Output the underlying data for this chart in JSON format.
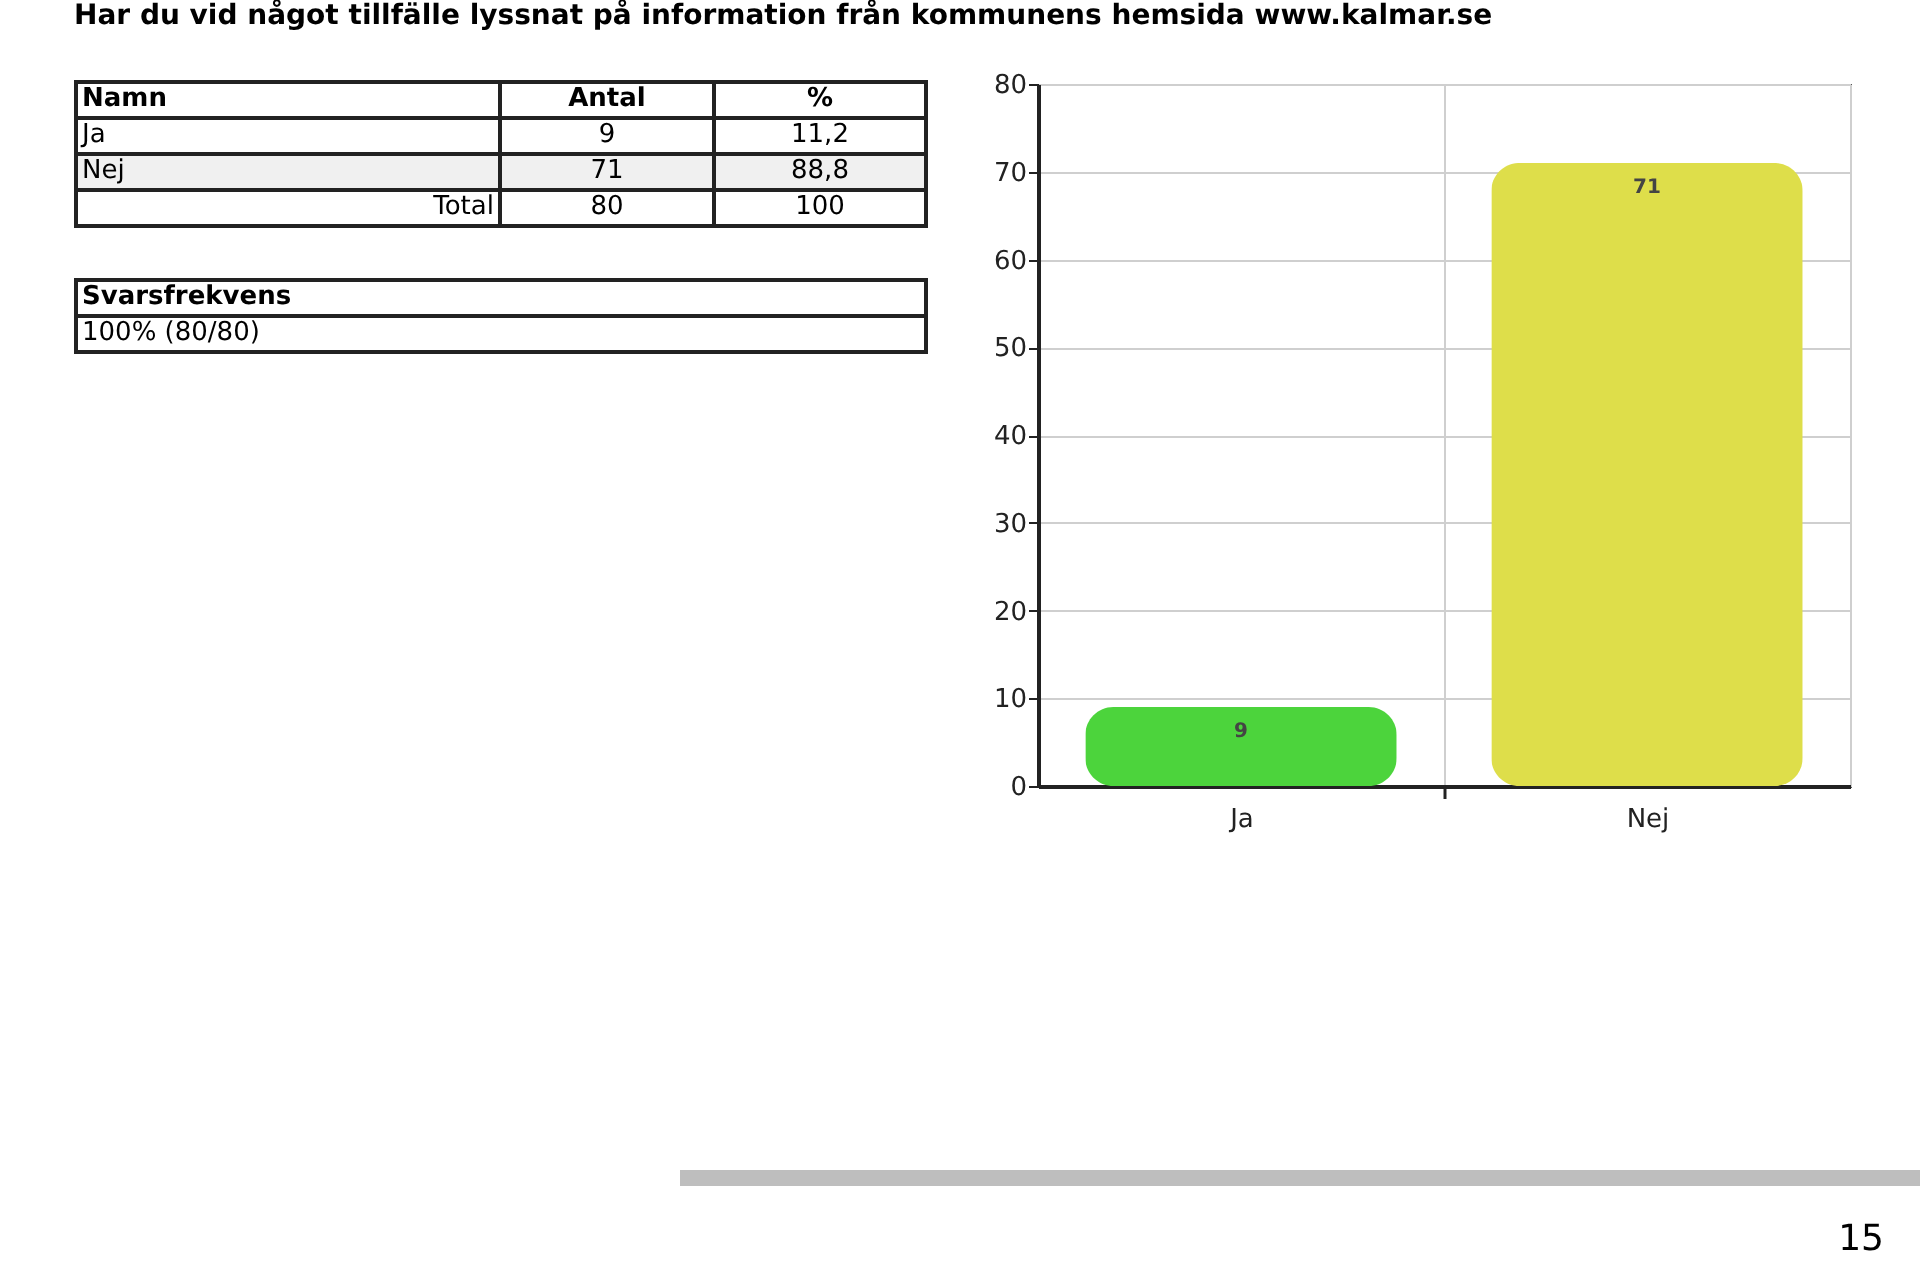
{
  "chart_data": {
    "type": "bar",
    "title": "Har du vid något tillfälle lyssnat på information från kommunens hemsida www.kalmar.se",
    "categories": [
      "Ja",
      "Nej"
    ],
    "values": [
      9,
      71
    ],
    "colors": [
      "#4cd43c",
      "#dede4a"
    ],
    "ylim": [
      0,
      80
    ],
    "yticks": [
      0,
      10,
      20,
      30,
      40,
      50,
      60,
      70,
      80
    ],
    "grid": true,
    "data_labels": true,
    "annotations": [
      "Namn",
      "Antal",
      "%",
      "Ja",
      "9",
      "11,2",
      "Nej",
      "71",
      "88,8",
      "Total",
      "80",
      "100",
      "Svarsfrekvens",
      "100% (80/80)",
      "15"
    ]
  }
}
